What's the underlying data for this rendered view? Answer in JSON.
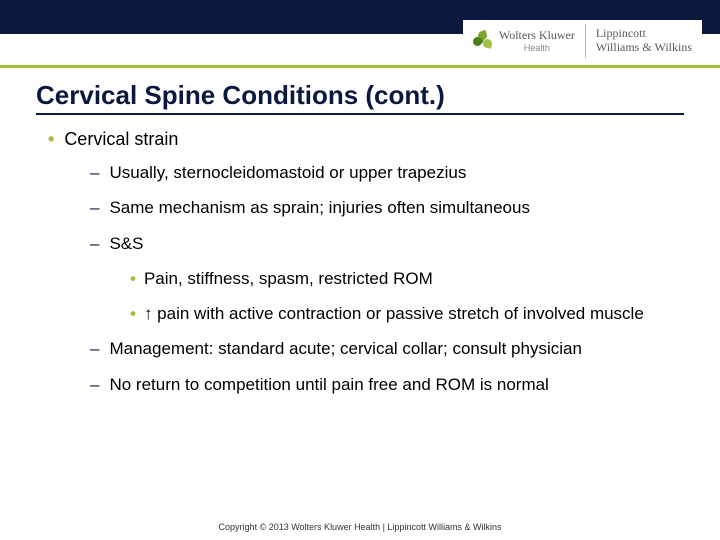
{
  "brand": {
    "wk_name": "Wolters Kluwer",
    "wk_sub": "Health",
    "lww_line1": "Lippincott",
    "lww_line2": "Williams & Wilkins"
  },
  "title": "Cervical Spine Conditions (cont.)",
  "level1": {
    "item1": "Cervical strain"
  },
  "level2": {
    "i1": "Usually, sternocleidomastoid or upper trapezius",
    "i2": "Same mechanism as sprain; injuries often simultaneous",
    "i3": "S&S",
    "i4": "Management: standard acute; cervical collar; consult physician",
    "i5": "No return to competition until pain free and ROM is normal"
  },
  "level3": {
    "i1": "Pain, stiffness, spasm, restricted ROM",
    "i2": "↑ pain with active contraction or passive stretch of involved muscle"
  },
  "footer": "Copyright © 2013 Wolters Kluwer Health | Lippincott Williams & Wilkins",
  "colors": {
    "navy": "#0b1940",
    "green": "#9fbf3b",
    "text": "#000000",
    "bg": "#ffffff"
  },
  "typography": {
    "title_fontsize": 26,
    "body_fontsize": 17,
    "footer_fontsize": 9,
    "title_weight": "bold"
  }
}
